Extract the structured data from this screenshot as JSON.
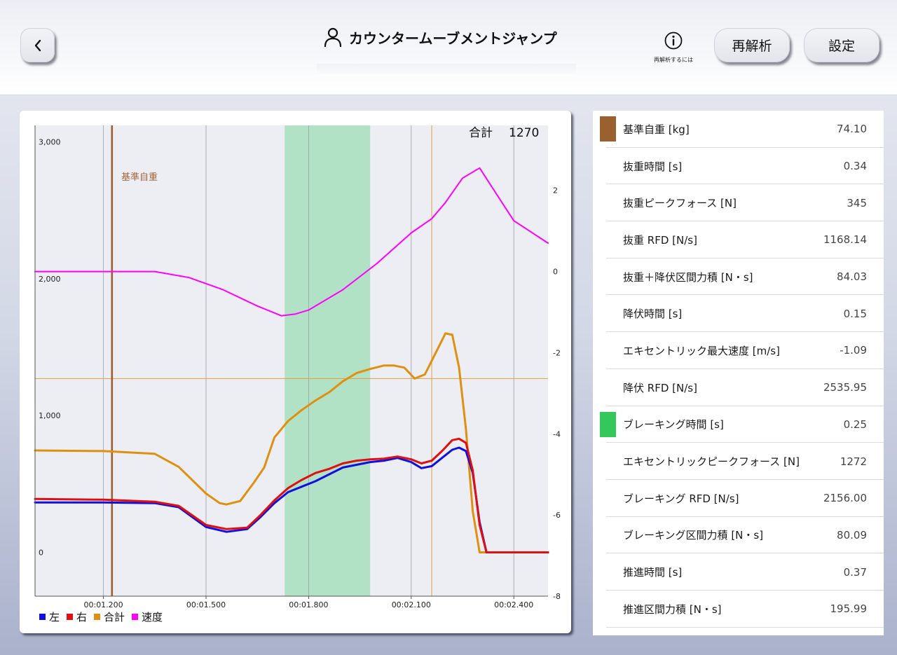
{
  "header": {
    "back_icon": "chevron-left-icon",
    "title_icon": "person-icon",
    "title": "カウンタームーブメントジャンプ",
    "help_icon": "info-icon",
    "help_label": "再解析するには",
    "reanalyze_label": "再解析",
    "settings_label": "設定"
  },
  "chart": {
    "total_label": "合計",
    "total_value": "1270",
    "baseline_label": "基準自重",
    "legend": [
      {
        "label": "左",
        "color": "#1010e0"
      },
      {
        "label": "右",
        "color": "#e01010"
      },
      {
        "label": "合計",
        "color": "#e09010"
      },
      {
        "label": "速度",
        "color": "#ff00ff"
      }
    ]
  },
  "chart_data": {
    "type": "line",
    "x_ticks": [
      "00:01.200",
      "00:01.500",
      "00:01.800",
      "00:02.100",
      "00:02.400"
    ],
    "y_left_ticks": [
      "0",
      "1,000",
      "2,000",
      "3,000"
    ],
    "y_right_ticks": [
      "2",
      "0",
      "-2",
      "-4",
      "-6",
      "-8"
    ],
    "x_range_s": [
      1.0,
      2.5
    ],
    "y_left_range": [
      -320,
      3120
    ],
    "y_right_range": [
      -8.0,
      3.6
    ],
    "colors": {
      "left": "#1010e0",
      "right": "#e01010",
      "total": "#e09010",
      "velocity": "#ff00ff",
      "baseline": "#9b5f30",
      "threshold": "#e0a040",
      "braking_band": "#b2e2c5"
    },
    "baseline_time_s": 1.225,
    "threshold_force": 1270,
    "orange_marker_time_s": 2.16,
    "braking_phase_s": [
      1.73,
      1.98
    ],
    "series": [
      {
        "name": "左",
        "x": [
          1.0,
          1.2,
          1.35,
          1.42,
          1.5,
          1.56,
          1.62,
          1.66,
          1.7,
          1.74,
          1.78,
          1.82,
          1.86,
          1.9,
          1.94,
          1.98,
          2.02,
          2.06,
          2.1,
          2.13,
          2.16,
          2.19,
          2.22,
          2.24,
          2.26,
          2.28,
          2.3,
          2.32,
          2.34,
          2.5
        ],
        "values": [
          365,
          365,
          360,
          330,
          185,
          150,
          170,
          260,
          360,
          440,
          480,
          520,
          570,
          620,
          640,
          660,
          670,
          690,
          660,
          615,
          630,
          690,
          750,
          765,
          740,
          580,
          220,
          0,
          0,
          0
        ]
      },
      {
        "name": "右",
        "x": [
          1.0,
          1.2,
          1.35,
          1.42,
          1.5,
          1.56,
          1.62,
          1.66,
          1.7,
          1.74,
          1.78,
          1.82,
          1.86,
          1.9,
          1.94,
          1.98,
          2.02,
          2.06,
          2.1,
          2.13,
          2.16,
          2.19,
          2.22,
          2.24,
          2.26,
          2.28,
          2.3,
          2.32,
          2.34,
          2.5
        ],
        "values": [
          390,
          385,
          370,
          340,
          200,
          170,
          180,
          275,
          380,
          470,
          530,
          580,
          610,
          650,
          670,
          680,
          685,
          700,
          680,
          650,
          670,
          740,
          820,
          830,
          800,
          600,
          200,
          0,
          0,
          0
        ]
      },
      {
        "name": "合計",
        "x": [
          1.0,
          1.2,
          1.35,
          1.42,
          1.5,
          1.54,
          1.56,
          1.6,
          1.64,
          1.67,
          1.7,
          1.74,
          1.78,
          1.82,
          1.86,
          1.9,
          1.94,
          1.98,
          2.02,
          2.05,
          2.08,
          2.11,
          2.14,
          2.17,
          2.2,
          2.22,
          2.24,
          2.26,
          2.28,
          2.3,
          2.32,
          2.5
        ],
        "values": [
          745,
          740,
          720,
          625,
          430,
          360,
          350,
          375,
          510,
          620,
          840,
          960,
          1040,
          1110,
          1170,
          1250,
          1310,
          1340,
          1365,
          1365,
          1350,
          1270,
          1300,
          1450,
          1600,
          1590,
          1350,
          900,
          300,
          0,
          0,
          0
        ]
      },
      {
        "name": "速度",
        "axis": "right",
        "x": [
          1.0,
          1.2,
          1.35,
          1.45,
          1.55,
          1.65,
          1.72,
          1.76,
          1.8,
          1.9,
          2.0,
          2.1,
          2.16,
          2.2,
          2.25,
          2.3,
          2.35,
          2.4,
          2.5
        ],
        "values": [
          0.0,
          0.0,
          0.0,
          -0.15,
          -0.45,
          -0.85,
          -1.09,
          -1.05,
          -0.95,
          -0.45,
          0.2,
          0.95,
          1.3,
          1.7,
          2.3,
          2.55,
          1.9,
          1.25,
          0.7
        ]
      }
    ]
  },
  "metrics": [
    {
      "label": "基準自重 [kg]",
      "value": "74.10",
      "swatch": "#9b6030"
    },
    {
      "label": "抜重時間 [s]",
      "value": "0.34",
      "swatch": ""
    },
    {
      "label": "抜重ピークフォース [N]",
      "value": "345",
      "swatch": ""
    },
    {
      "label": "抜重 RFD [N/s]",
      "value": "1168.14",
      "swatch": ""
    },
    {
      "label": "抜重＋降伏区間力積 [N・s]",
      "value": "84.03",
      "swatch": ""
    },
    {
      "label": "降伏時間 [s]",
      "value": "0.15",
      "swatch": ""
    },
    {
      "label": "エキセントリック最大速度 [m/s]",
      "value": "-1.09",
      "swatch": ""
    },
    {
      "label": "降伏 RFD [N/s]",
      "value": "2535.95",
      "swatch": ""
    },
    {
      "label": "ブレーキング時間 [s]",
      "value": "0.25",
      "swatch": "#34c759"
    },
    {
      "label": "エキセントリックピークフォース [N]",
      "value": "1272",
      "swatch": ""
    },
    {
      "label": "ブレーキング RFD [N/s]",
      "value": "2156.00",
      "swatch": ""
    },
    {
      "label": "ブレーキング区間力積 [N・s]",
      "value": "80.09",
      "swatch": ""
    },
    {
      "label": "推進時間 [s]",
      "value": "0.37",
      "swatch": ""
    },
    {
      "label": "推進区間力積 [N・s]",
      "value": "195.99",
      "swatch": ""
    }
  ]
}
